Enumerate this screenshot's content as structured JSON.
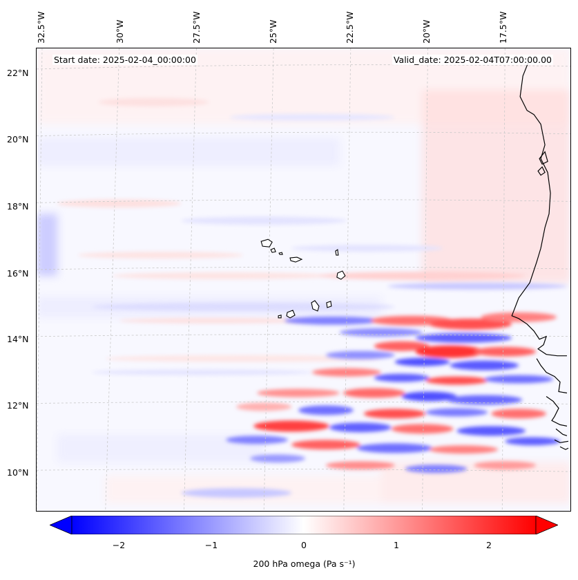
{
  "map": {
    "start_date": "Start date: 2025-02-04_00:00:00",
    "valid_date": "Valid_date: 2025-02-04T07:00:00.00",
    "lon_labels": [
      "32.5°W",
      "30°W",
      "27.5°W",
      "25°W",
      "22.5°W",
      "20°W",
      "17.5°W"
    ],
    "lat_labels": [
      "22°N",
      "20°N",
      "18°N",
      "16°N",
      "14°N",
      "12°N",
      "10°N"
    ],
    "colors": {
      "negative": "#0000ff",
      "neutral": "#ffffff",
      "positive": "#ff0000",
      "coast": "#000000",
      "grid": "#c8c8c8"
    }
  },
  "colorbar": {
    "ticks": [
      "−2",
      "−1",
      "0",
      "1",
      "2"
    ],
    "label": "200 hPa omega (Pa s⁻¹)",
    "range": [
      -2.75,
      2.75
    ]
  }
}
